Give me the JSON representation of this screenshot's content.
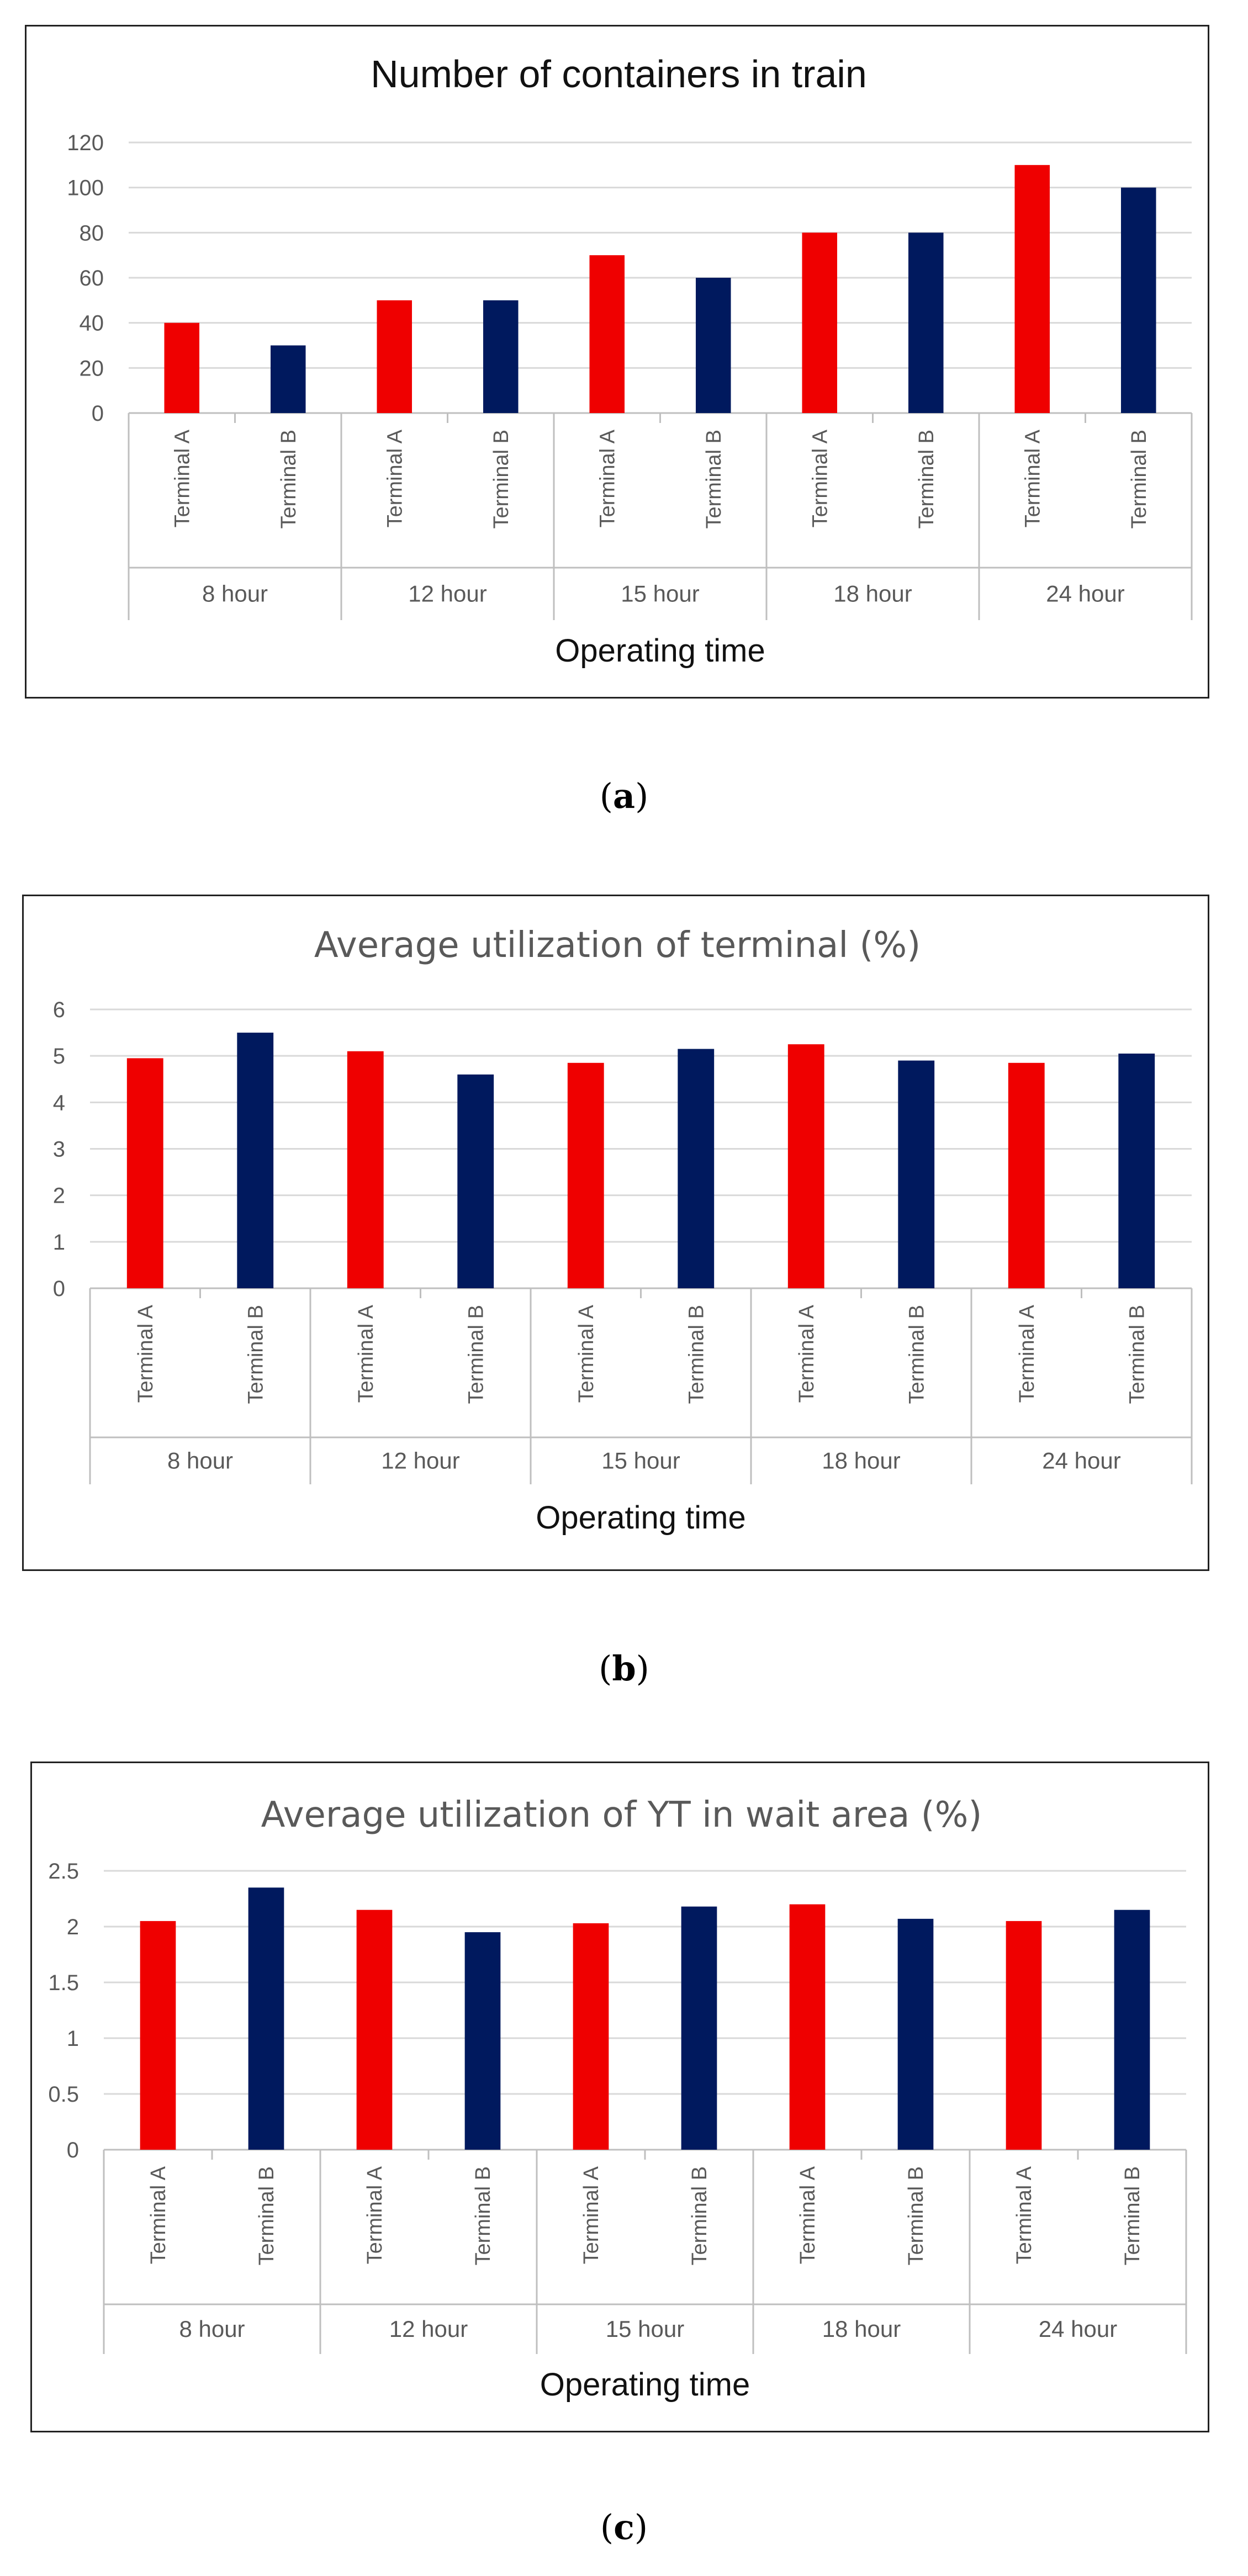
{
  "colors": {
    "terminal_a": "#ef0000",
    "terminal_b": "#00195e",
    "gridline": "#d9d9d9",
    "axis": "#bfbfbf",
    "title_a": "#111111",
    "title_bc": "#595959"
  },
  "chart_data": [
    {
      "type": "bar",
      "id": "a",
      "title": "Number of containers in train",
      "xlabel": "Operating time",
      "ylabel": "",
      "groups": [
        "8 hour",
        "12 hour",
        "15 hour",
        "18 hour",
        "24 hour"
      ],
      "series": [
        {
          "name": "Terminal A",
          "values": [
            40,
            50,
            70,
            80,
            110
          ]
        },
        {
          "name": "Terminal B",
          "values": [
            30,
            50,
            60,
            80,
            100
          ]
        }
      ],
      "ylim": [
        0,
        120
      ],
      "yticks": [
        "0",
        "20",
        "40",
        "60",
        "80",
        "100",
        "120"
      ],
      "grid": true
    },
    {
      "type": "bar",
      "id": "b",
      "title": "Average utilization of terminal (%)",
      "xlabel": "Operating time",
      "ylabel": "",
      "groups": [
        "8 hour",
        "12 hour",
        "15 hour",
        "18 hour",
        "24 hour"
      ],
      "series": [
        {
          "name": "Terminal A",
          "values": [
            4.95,
            5.1,
            4.85,
            5.25,
            4.85
          ]
        },
        {
          "name": "Terminal B",
          "values": [
            5.5,
            4.6,
            5.15,
            4.9,
            5.05
          ]
        }
      ],
      "ylim": [
        0,
        6
      ],
      "yticks": [
        "0",
        "1",
        "2",
        "3",
        "4",
        "5",
        "6"
      ],
      "grid": true
    },
    {
      "type": "bar",
      "id": "c",
      "title": "Average utilization of YT in wait area (%)",
      "xlabel": "Operating time",
      "ylabel": "",
      "groups": [
        "8 hour",
        "12 hour",
        "15 hour",
        "18 hour",
        "24 hour"
      ],
      "series": [
        {
          "name": "Terminal A",
          "values": [
            2.05,
            2.15,
            2.03,
            2.2,
            2.05
          ]
        },
        {
          "name": "Terminal B",
          "values": [
            2.35,
            1.95,
            2.18,
            2.07,
            2.15
          ]
        }
      ],
      "ylim": [
        0,
        2.5
      ],
      "yticks": [
        "0",
        "0.5",
        "1",
        "1.5",
        "2",
        "2.5"
      ],
      "grid": true
    }
  ],
  "captions": {
    "a": "a",
    "b": "b",
    "c": "c"
  }
}
